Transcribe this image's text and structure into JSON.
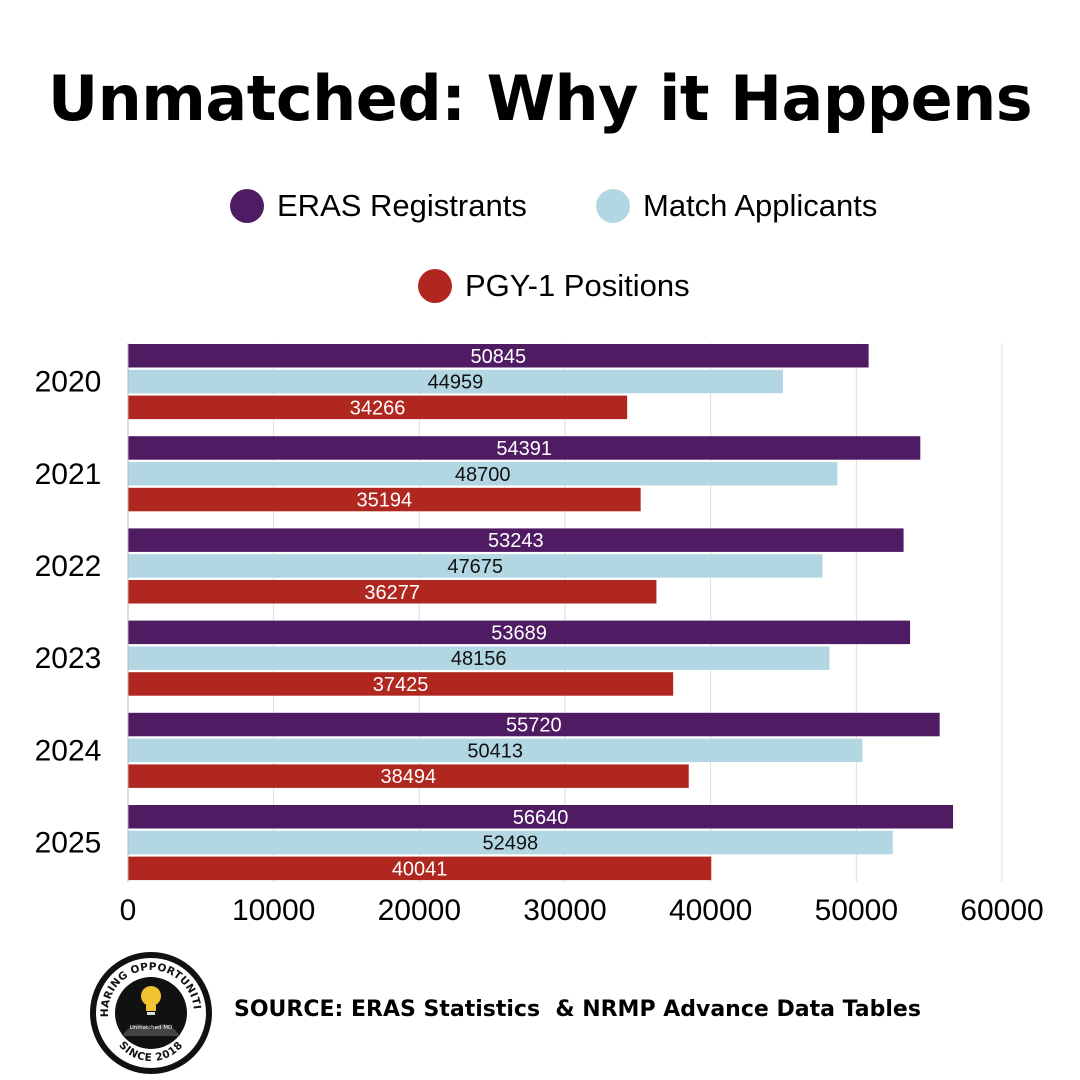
{
  "title": "Unmatched: Why it Happens",
  "legend": [
    {
      "label": "ERAS Registrants",
      "color": "#4f1b63"
    },
    {
      "label": "Match Applicants",
      "color": "#b2d7e2"
    },
    {
      "label": "PGY-1 Positions",
      "color": "#b02720"
    }
  ],
  "chart_data": {
    "type": "bar",
    "orientation": "horizontal",
    "categories": [
      "2020",
      "2021",
      "2022",
      "2023",
      "2024",
      "2025"
    ],
    "series": [
      {
        "name": "ERAS Registrants",
        "color": "#4f1b63",
        "label_color": "#ffffff",
        "values": [
          50845,
          54391,
          53243,
          53689,
          55720,
          56640
        ]
      },
      {
        "name": "Match Applicants",
        "color": "#b2d7e2",
        "label_color": "#111111",
        "values": [
          44959,
          48700,
          47675,
          48156,
          50413,
          52498
        ]
      },
      {
        "name": "PGY-1 Positions",
        "color": "#b02720",
        "label_color": "#ffffff",
        "values": [
          34266,
          35194,
          36277,
          37425,
          38494,
          40041
        ]
      }
    ],
    "xlim": [
      0,
      60000
    ],
    "xticks": [
      0,
      10000,
      20000,
      30000,
      40000,
      50000,
      60000
    ],
    "grid": true,
    "legend_position": "top-center"
  },
  "source": "SOURCE: ERAS Statistics  & NRMP Advance Data Tables",
  "logo": {
    "top_text": "SHARING OPPORTUNITIES",
    "bottom_text": "SINCE 2018",
    "inner_text": "Unmatched MD",
    "icon": "lightbulb-icon"
  }
}
